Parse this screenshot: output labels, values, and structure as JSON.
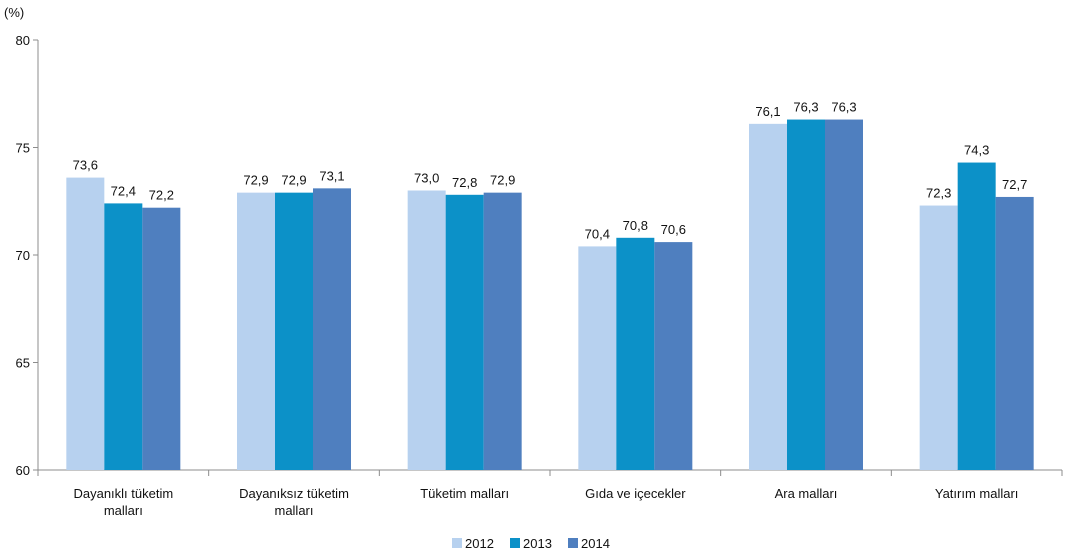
{
  "chart_data": {
    "type": "bar",
    "ylabel": "(%)",
    "ylim": [
      60,
      80
    ],
    "yticks": [
      60,
      65,
      70,
      75,
      80
    ],
    "grid": false,
    "legend_position": "bottom-center",
    "categories": [
      [
        "Dayanıklı tüketim",
        "malları"
      ],
      [
        "Dayanıksız tüketim",
        "malları"
      ],
      [
        "Tüketim malları"
      ],
      [
        "Gıda ve içecekler"
      ],
      [
        "Ara malları"
      ],
      [
        "Yatırım malları"
      ]
    ],
    "series": [
      {
        "name": "2012",
        "color": "#b7d1ef",
        "values": [
          73.6,
          72.9,
          73.0,
          70.4,
          76.1,
          72.3
        ],
        "labels": [
          "73,6",
          "72,9",
          "73,0",
          "70,4",
          "76,1",
          "72,3"
        ]
      },
      {
        "name": "2013",
        "color": "#0c91c8",
        "values": [
          72.4,
          72.9,
          72.8,
          70.8,
          76.3,
          74.3
        ],
        "labels": [
          "72,4",
          "72,9",
          "72,8",
          "70,8",
          "76,3",
          "74,3"
        ]
      },
      {
        "name": "2014",
        "color": "#4f7fbf",
        "values": [
          72.2,
          73.1,
          72.9,
          70.6,
          76.3,
          72.7
        ],
        "labels": [
          "72,2",
          "73,1",
          "72,9",
          "70,6",
          "76,3",
          "72,7"
        ]
      }
    ]
  }
}
